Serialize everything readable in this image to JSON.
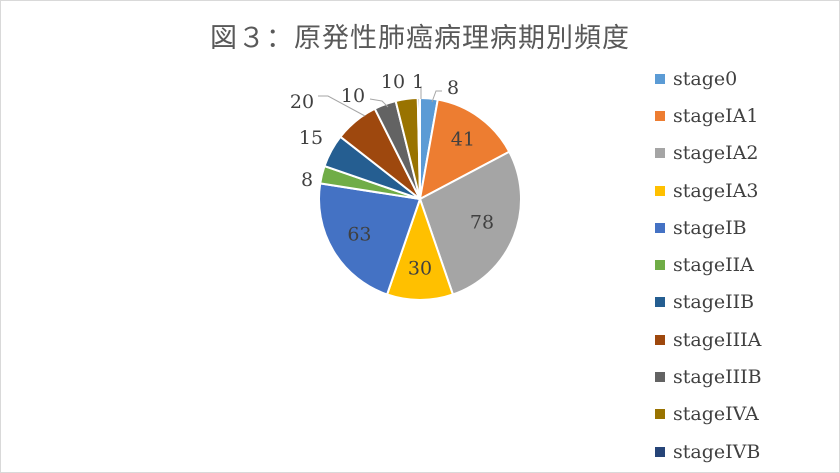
{
  "chart_data": {
    "type": "pie",
    "title": "図３：原発性肺癌病理病期別頻度",
    "categories": [
      "stage0",
      "stageIA1",
      "stageIA2",
      "stageIA3",
      "stageIB",
      "stageIIA",
      "stageIIB",
      "stageIIIA",
      "stageIIIB",
      "stageIVA",
      "stageIVB"
    ],
    "values": [
      8,
      41,
      78,
      30,
      63,
      8,
      15,
      20,
      10,
      10,
      1
    ],
    "colors": [
      "#5b9bd5",
      "#ed7d31",
      "#a5a5a5",
      "#ffc000",
      "#4472c4",
      "#70ad47",
      "#255e91",
      "#9e480e",
      "#636363",
      "#997300",
      "#264478"
    ],
    "legend_position": "right"
  }
}
